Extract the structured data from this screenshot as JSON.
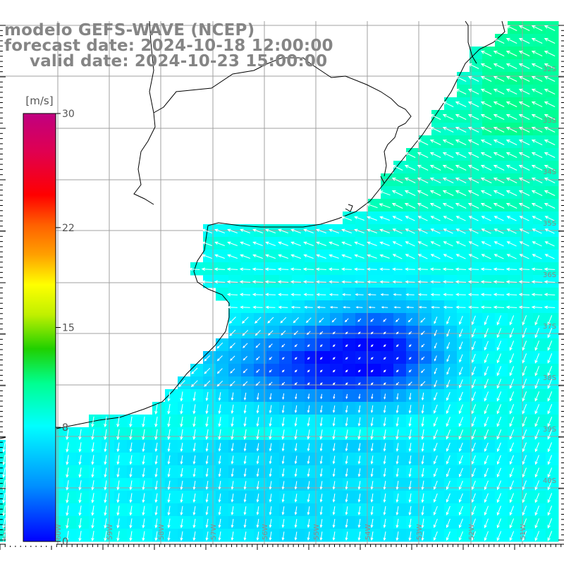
{
  "title": {
    "line1": "modelo GEFS-WAVE (NCEP)",
    "line2": "forecast date: 2024-10-18 12:00:00",
    "line3": "valid date: 2024-10-23 15:00:00"
  },
  "colorbar": {
    "unit": "[m/s]",
    "min": 0,
    "max": 30,
    "tick_labels": [
      "30",
      "22",
      "15",
      "8",
      "0"
    ],
    "tick_values": [
      30,
      22,
      15,
      8,
      0
    ]
  },
  "map": {
    "latitude_labels": [
      "32S",
      "33S",
      "34S",
      "35S",
      "36S",
      "37S",
      "38S",
      "39S",
      "40S"
    ],
    "longitude_labels": [
      "61W",
      "60W",
      "59W",
      "58W",
      "57W",
      "56W",
      "55W",
      "54W",
      "53W",
      "52W",
      "51W"
    ],
    "land_color": "#ffffff",
    "grid_color": "#b0b0b0",
    "coast_color": "#000000",
    "arrow_color": "#ffffff"
  }
}
